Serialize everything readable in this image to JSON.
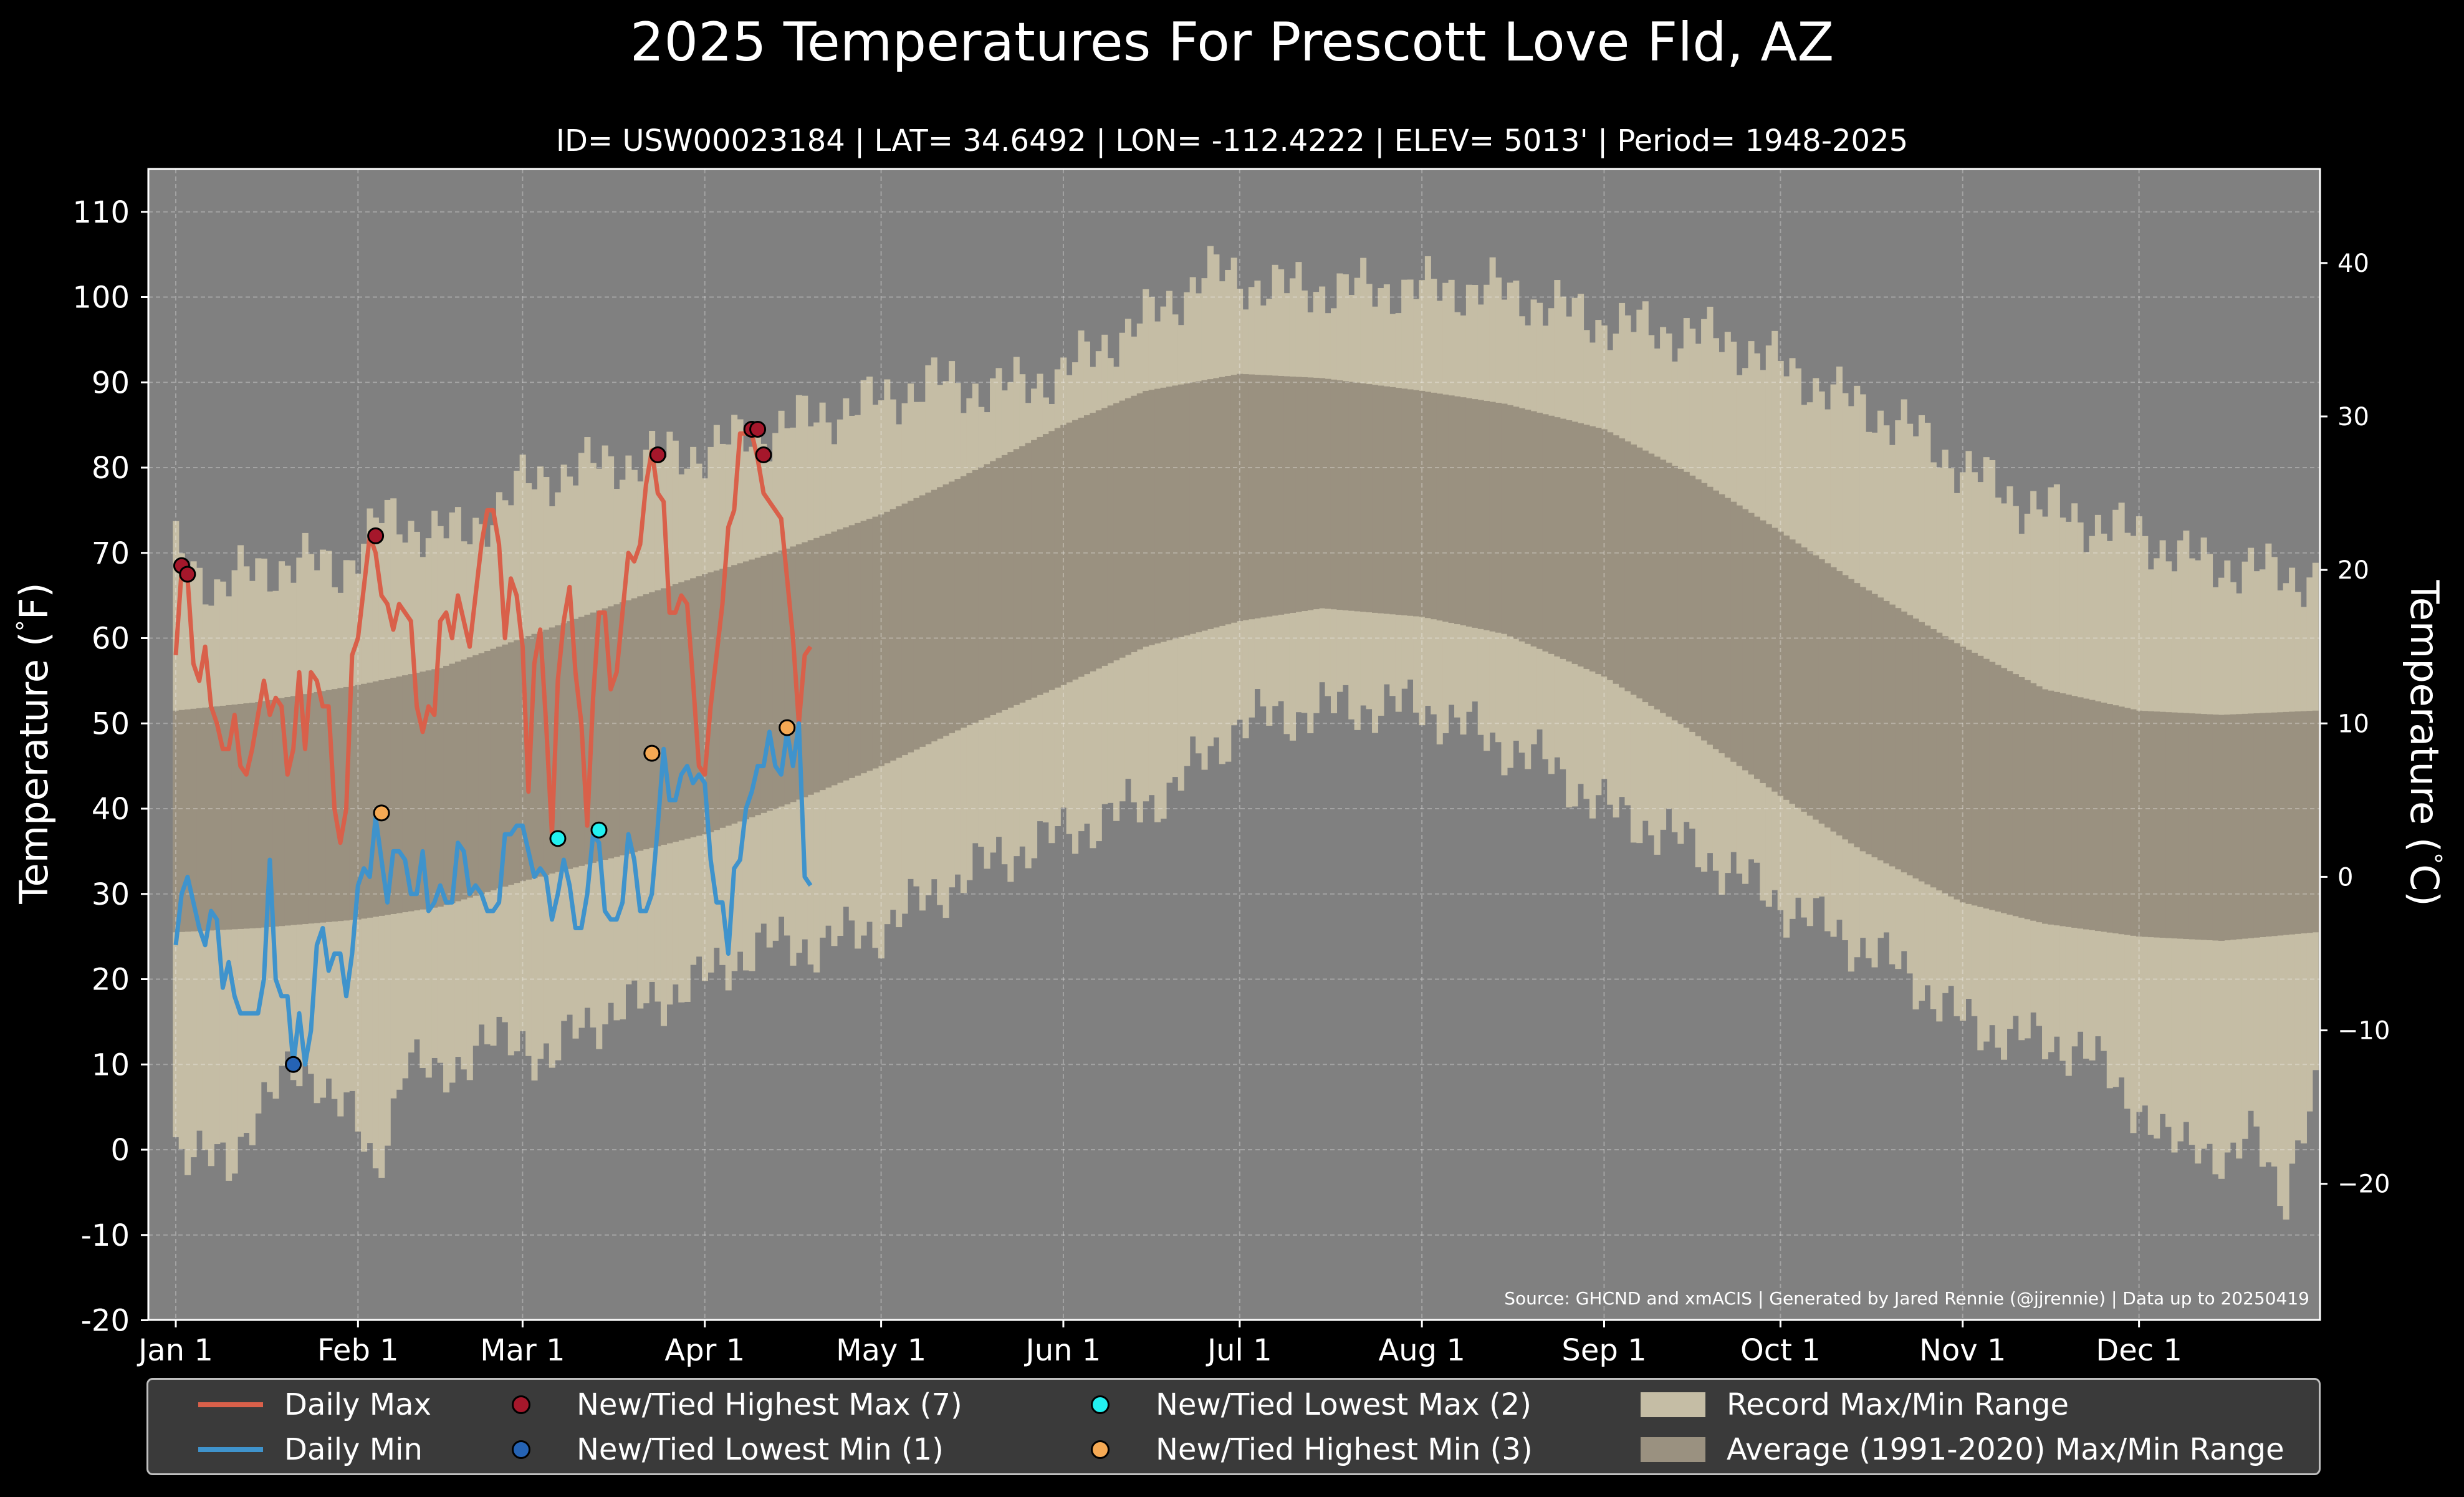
{
  "title": "2025 Temperatures For Prescott Love Fld, AZ",
  "subtitle": "ID= USW00023184 | LAT= 34.6492 | LON= -112.4222 | ELEV= 5013' | Period= 1948-2025",
  "source": "Source: GHCND and xmACIS | Generated by Jared Rennie (@jjrennie) | Data up to 20250419",
  "colors": {
    "background": "#000000",
    "plot_bg": "#808080",
    "record_range": "#c5bda5",
    "average_range": "#9a9180",
    "daily_max": "#d9604a",
    "daily_min": "#3f93cc",
    "new_high_max": "#a5172b",
    "new_low_min": "#2563b4",
    "new_low_max": "#22f0f0",
    "new_high_min": "#f5a954"
  },
  "legend": {
    "daily_max": "Daily Max",
    "daily_min": "Daily Min",
    "new_high_max": "New/Tied Highest Max (7)",
    "new_low_min": "New/Tied Lowest Min (1)",
    "new_low_max": "New/Tied Lowest Max (2)",
    "new_high_min": "New/Tied Highest Min (3)",
    "record_range": "Record Max/Min Range",
    "average_range": "Average (1991-2020) Max/Min Range"
  },
  "chart_data": {
    "type": "line",
    "x_axis": {
      "unit": "day of year 2025",
      "range": [
        1,
        365
      ],
      "tick_labels": [
        "Jan 1",
        "Feb 1",
        "Mar 1",
        "Apr 1",
        "May 1",
        "Jun 1",
        "Jul 1",
        "Aug 1",
        "Sep 1",
        "Oct 1",
        "Nov 1",
        "Dec 1"
      ],
      "tick_days": [
        1,
        32,
        60,
        91,
        121,
        152,
        182,
        213,
        244,
        274,
        305,
        335
      ]
    },
    "y_axis_left": {
      "label": "Temperature ( $^\\circ$F)",
      "label_text": "Temperature (",
      "label_unit": "F)",
      "range": [
        -20,
        115
      ],
      "ticks": [
        110,
        100,
        90,
        80,
        70,
        60,
        50,
        40,
        30,
        20,
        10,
        0,
        -10,
        -20
      ]
    },
    "y_axis_right": {
      "label_text": "Temperature (",
      "label_unit": "C)",
      "ticks": [
        40,
        30,
        20,
        10,
        0,
        -10,
        -20
      ],
      "tick_labels": [
        "40",
        "30",
        "20",
        "10",
        "0",
        "−10",
        "−20"
      ]
    },
    "grid": true,
    "legend_placement": "bottom",
    "record_max_keypoints": {
      "x": [
        1,
        8,
        15,
        22,
        29,
        36,
        43,
        50,
        60,
        70,
        80,
        91,
        100,
        110,
        121,
        130,
        140,
        152,
        160,
        170,
        176,
        182,
        190,
        200,
        213,
        225,
        235,
        244,
        255,
        265,
        274,
        285,
        295,
        305,
        315,
        325,
        335,
        345,
        355,
        365
      ],
      "y": [
        70,
        66,
        68,
        69,
        68,
        74,
        73,
        72,
        78,
        80,
        81,
        82,
        84,
        86,
        88,
        90,
        89,
        91,
        95,
        99,
        103,
        102,
        101,
        101,
        101,
        101,
        99,
        97,
        96,
        95,
        92,
        88,
        85,
        80,
        76,
        74,
        72,
        69,
        68,
        67
      ]
    },
    "record_min_keypoints": {
      "x": [
        1,
        5,
        10,
        15,
        20,
        25,
        30,
        35,
        40,
        45,
        52,
        60,
        65,
        70,
        80,
        91,
        100,
        110,
        121,
        130,
        140,
        152,
        160,
        170,
        182,
        190,
        200,
        213,
        225,
        235,
        244,
        255,
        265,
        274,
        285,
        295,
        305,
        315,
        325,
        335,
        340,
        345,
        350,
        355,
        360,
        365
      ],
      "y": [
        1,
        0,
        -3,
        6,
        8,
        9,
        5,
        -3,
        11,
        8,
        12,
        13,
        10,
        15,
        17,
        20,
        24,
        24,
        26,
        30,
        34,
        37,
        39,
        42,
        50,
        51,
        52,
        52,
        48,
        45,
        40,
        37,
        33,
        29,
        25,
        21,
        15,
        13,
        12,
        5,
        0,
        2,
        -3,
        3,
        -6,
        6
      ]
    },
    "average_max_keypoints": {
      "x": [
        1,
        15,
        32,
        46,
        60,
        74,
        91,
        105,
        121,
        135,
        152,
        166,
        182,
        196,
        213,
        227,
        244,
        258,
        274,
        288,
        305,
        319,
        335,
        349,
        365
      ],
      "y": [
        51.5,
        52.5,
        54.5,
        56.5,
        60,
        63.5,
        67.5,
        70.5,
        74.5,
        79,
        85,
        89,
        91,
        90.5,
        89,
        87.5,
        84.5,
        79.5,
        72.5,
        66,
        59,
        54,
        51.5,
        51,
        51.5
      ]
    },
    "average_min_keypoints": {
      "x": [
        1,
        15,
        32,
        46,
        60,
        74,
        91,
        105,
        121,
        135,
        152,
        166,
        182,
        196,
        213,
        227,
        244,
        258,
        274,
        288,
        305,
        319,
        335,
        349,
        365
      ],
      "y": [
        25.5,
        26,
        27,
        28.5,
        31.5,
        34,
        37,
        40.5,
        45,
        49.5,
        54.5,
        59,
        62,
        63.5,
        62.5,
        60.5,
        55.5,
        49.5,
        41.5,
        35,
        29,
        26.5,
        25,
        24.5,
        25.5
      ]
    },
    "series": [
      {
        "name": "Daily Max",
        "x": [
          1,
          2,
          3,
          4,
          5,
          6,
          7,
          8,
          9,
          10,
          11,
          12,
          13,
          14,
          15,
          16,
          17,
          18,
          19,
          20,
          21,
          22,
          23,
          24,
          25,
          26,
          27,
          28,
          29,
          30,
          31,
          32,
          33,
          34,
          35,
          36,
          37,
          38,
          39,
          40,
          41,
          42,
          43,
          44,
          45,
          46,
          47,
          48,
          49,
          50,
          51,
          52,
          53,
          54,
          55,
          56,
          57,
          58,
          59,
          60,
          61,
          62,
          63,
          64,
          65,
          66,
          67,
          68,
          69,
          70,
          71,
          72,
          73,
          74,
          75,
          76,
          77,
          78,
          79,
          80,
          81,
          82,
          83,
          84,
          85,
          86,
          87,
          88,
          89,
          90,
          91,
          92,
          93,
          94,
          95,
          96,
          97,
          98,
          99,
          100,
          101,
          102,
          103,
          104,
          105,
          106,
          107,
          108,
          109
        ],
        "y": [
          58,
          68,
          67,
          57,
          55,
          59,
          52,
          50,
          47,
          47,
          51,
          45,
          44,
          47,
          51,
          55,
          51,
          53,
          52,
          44,
          47,
          56,
          47,
          56,
          55,
          52,
          52,
          40,
          36,
          40,
          58,
          60,
          66,
          72,
          70,
          65,
          64,
          61,
          64,
          63,
          62,
          52,
          49,
          52,
          51,
          62,
          63,
          60,
          65,
          62,
          59,
          65,
          71,
          75,
          75,
          71,
          60,
          67,
          65,
          59,
          42,
          57,
          61,
          50,
          37,
          55,
          62,
          66,
          56,
          50,
          38,
          53,
          63,
          63,
          54,
          56,
          63,
          70,
          69,
          71,
          78,
          82,
          77,
          76,
          63,
          63,
          65,
          64,
          55,
          45,
          44,
          52,
          58,
          64,
          73,
          75,
          84,
          84,
          84,
          81,
          77,
          76,
          75,
          74,
          67,
          60,
          50,
          58,
          59
        ]
      },
      {
        "name": "Daily Min",
        "x": [
          1,
          2,
          3,
          4,
          5,
          6,
          7,
          8,
          9,
          10,
          11,
          12,
          13,
          14,
          15,
          16,
          17,
          18,
          19,
          20,
          21,
          22,
          23,
          24,
          25,
          26,
          27,
          28,
          29,
          30,
          31,
          32,
          33,
          34,
          35,
          36,
          37,
          38,
          39,
          40,
          41,
          42,
          43,
          44,
          45,
          46,
          47,
          48,
          49,
          50,
          51,
          52,
          53,
          54,
          55,
          56,
          57,
          58,
          59,
          60,
          61,
          62,
          63,
          64,
          65,
          66,
          67,
          68,
          69,
          70,
          71,
          72,
          73,
          74,
          75,
          76,
          77,
          78,
          79,
          80,
          81,
          82,
          83,
          84,
          85,
          86,
          87,
          88,
          89,
          90,
          91,
          92,
          93,
          94,
          95,
          96,
          97,
          98,
          99,
          100,
          101,
          102,
          103,
          104,
          105,
          106,
          107,
          108,
          109
        ],
        "y": [
          24,
          30,
          32,
          29,
          26,
          24,
          28,
          27,
          19,
          22,
          18,
          16,
          16,
          16,
          16,
          20,
          34,
          20,
          18,
          18,
          10,
          16,
          10,
          14,
          24,
          26,
          21,
          23,
          23,
          18,
          23,
          31,
          33,
          32,
          39,
          34,
          29,
          35,
          35,
          34,
          30,
          30,
          35,
          28,
          29,
          31,
          29,
          29,
          36,
          35,
          30,
          31,
          30,
          28,
          28,
          29,
          37,
          37,
          38,
          38,
          35,
          32,
          33,
          32,
          27,
          30,
          34,
          31,
          26,
          26,
          30,
          37,
          36,
          28,
          27,
          27,
          29,
          37,
          34,
          28,
          28,
          30,
          38,
          47,
          41,
          41,
          44,
          45,
          43,
          44,
          43,
          34,
          29,
          29,
          23,
          33,
          34,
          40,
          42,
          45,
          45,
          49,
          45,
          44,
          49,
          45,
          50,
          32,
          31
        ]
      }
    ],
    "records": [
      {
        "type": "New/Tied Highest Max",
        "days": [
          2,
          3,
          35,
          83,
          99,
          100,
          101
        ],
        "values": [
          68.5,
          67.5,
          72,
          81.5,
          84.5,
          84.5,
          81.5
        ]
      },
      {
        "type": "New/Tied Lowest Min",
        "days": [
          21
        ],
        "values": [
          10
        ]
      },
      {
        "type": "New/Tied Lowest Max",
        "days": [
          66,
          73
        ],
        "values": [
          36.5,
          37.5
        ]
      },
      {
        "type": "New/Tied Highest Min",
        "days": [
          36,
          82,
          105
        ],
        "values": [
          39.5,
          46.5,
          49.5
        ]
      }
    ]
  }
}
